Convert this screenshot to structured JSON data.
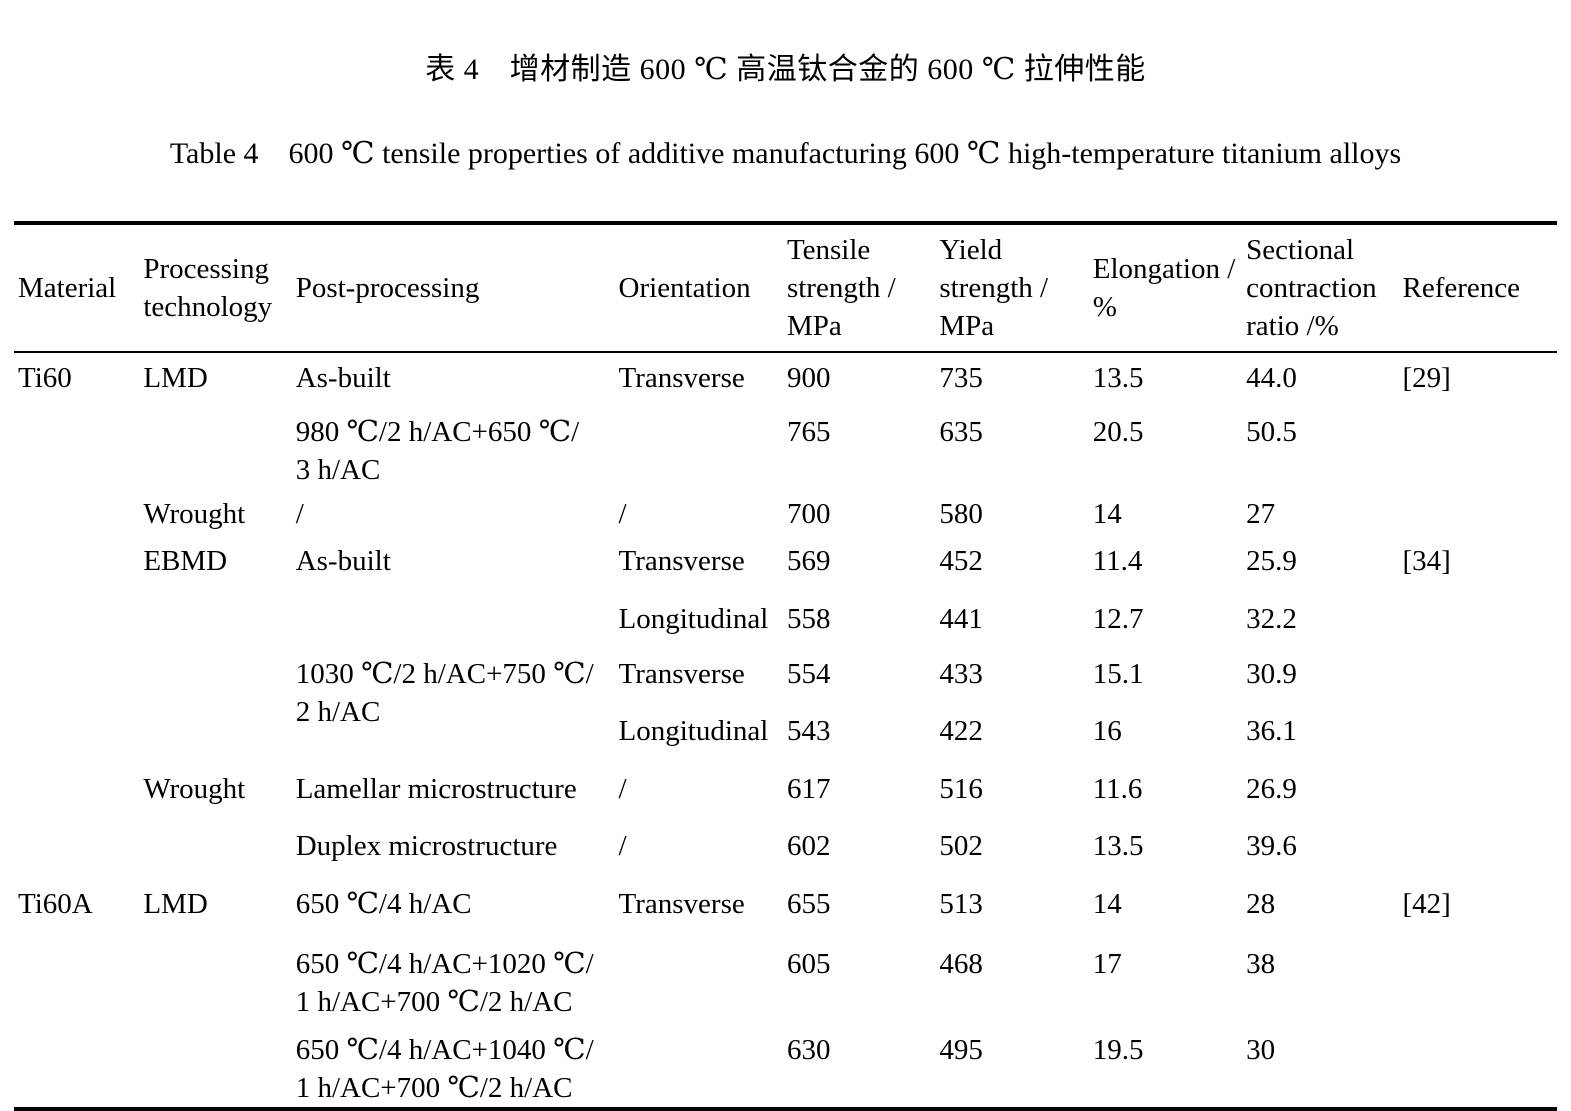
{
  "caption": {
    "zh": "表 4　增材制造 600 ℃ 高温钛合金的 600 ℃ 拉伸性能",
    "en": "Table 4　600 ℃ tensile properties of additive manufacturing 600 ℃ high-temperature titanium alloys"
  },
  "table": {
    "columns": [
      "Material",
      "Processing\ntechnology",
      "Post-processing",
      "Orientation",
      "Tensile\nstrength /\nMPa",
      "Yield\nstrength /\nMPa",
      "Elongation /\n%",
      "Sectional\ncontraction\nratio /%",
      "Reference"
    ],
    "rows": [
      {
        "cells": [
          "Ti60",
          "LMD",
          "As-built",
          "Transverse",
          "900",
          "735",
          "13.5",
          "44.0",
          "[29]"
        ]
      },
      {
        "cells": [
          "",
          "",
          "980 ℃/2 h/AC+650 ℃/\n3 h/AC",
          "",
          "765",
          "635",
          "20.5",
          "50.5",
          ""
        ]
      },
      {
        "cells": [
          "",
          "Wrought",
          "/",
          "/",
          "700",
          "580",
          "14",
          "27",
          ""
        ]
      },
      {
        "cells": [
          "",
          "EBMD",
          "As-built",
          "Transverse",
          "569",
          "452",
          "11.4",
          "25.9",
          "[34]"
        ]
      },
      {
        "cells": [
          "",
          "",
          "",
          "Longitudinal",
          "558",
          "441",
          "12.7",
          "32.2",
          ""
        ]
      },
      {
        "cells": [
          "",
          "",
          "1030 ℃/2 h/AC+750 ℃/\n2 h/AC",
          "Transverse",
          "554",
          "433",
          "15.1",
          "30.9",
          ""
        ],
        "rowspan": {
          "2": 2
        }
      },
      {
        "cells": [
          "",
          "",
          null,
          "Longitudinal",
          "543",
          "422",
          "16",
          "36.1",
          ""
        ]
      },
      {
        "cells": [
          "",
          "Wrought",
          "Lamellar microstructure",
          "/",
          "617",
          "516",
          "11.6",
          "26.9",
          ""
        ]
      },
      {
        "cells": [
          "",
          "",
          "Duplex microstructure",
          "/",
          "602",
          "502",
          "13.5",
          "39.6",
          ""
        ]
      },
      {
        "cells": [
          "Ti60A",
          "LMD",
          "650 ℃/4 h/AC",
          "Transverse",
          "655",
          "513",
          "14",
          "28",
          "[42]"
        ]
      },
      {
        "cells": [
          "",
          "",
          "650 ℃/4 h/AC+1020 ℃/\n1 h/AC+700 ℃/2 h/AC",
          "",
          "605",
          "468",
          "17",
          "38",
          ""
        ]
      },
      {
        "cells": [
          "",
          "",
          "650 ℃/4 h/AC+1040 ℃/\n1 h/AC+700 ℃/2 h/AC",
          "",
          "630",
          "495",
          "19.5",
          "30",
          ""
        ]
      }
    ]
  }
}
